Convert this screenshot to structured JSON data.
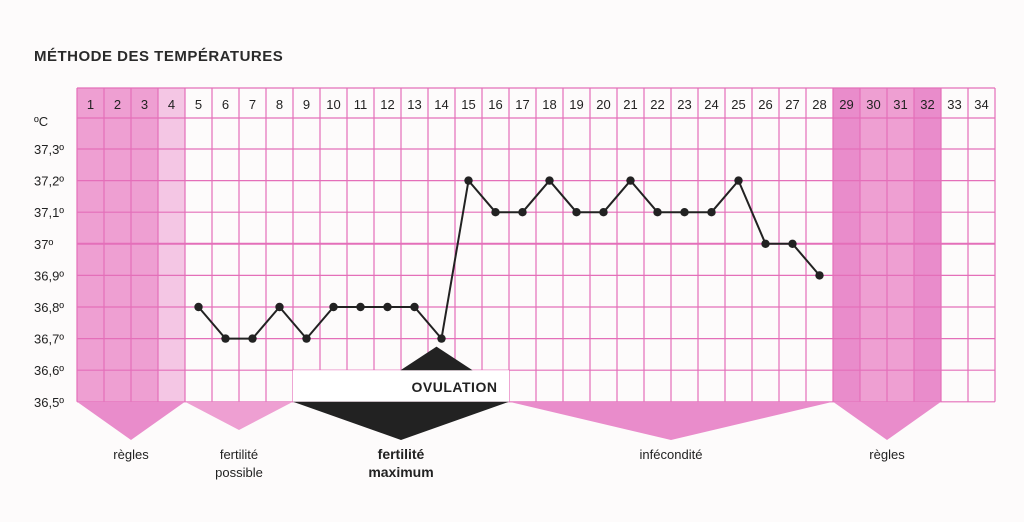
{
  "title": "MÉTHODE DES TEMPÉRATURES",
  "colors": {
    "pink_light": "#f4c6e4",
    "pink_mid": "#ee9fd2",
    "pink_strong": "#e98ccb",
    "grid_line": "#e46fb9",
    "black": "#222222"
  },
  "chart_data": {
    "type": "line",
    "title": "MÉTHODE DES TEMPÉRATURES",
    "xlabel": "",
    "ylabel": "°C",
    "x": [
      5,
      6,
      7,
      8,
      9,
      10,
      11,
      12,
      13,
      14,
      15,
      16,
      17,
      18,
      19,
      20,
      21,
      22,
      23,
      24,
      25,
      26,
      27,
      28
    ],
    "y": [
      36.8,
      36.7,
      36.7,
      36.8,
      36.7,
      36.8,
      36.8,
      36.8,
      36.8,
      36.7,
      37.2,
      37.1,
      37.1,
      37.2,
      37.1,
      37.1,
      37.2,
      37.1,
      37.1,
      37.1,
      37.2,
      37.0,
      37.0,
      36.9
    ],
    "xlim": [
      1,
      34
    ],
    "ylim": [
      36.5,
      37.3
    ],
    "grid": true,
    "day_labels": [
      "1",
      "2",
      "3",
      "4",
      "5",
      "6",
      "7",
      "8",
      "9",
      "10",
      "11",
      "12",
      "13",
      "14",
      "15",
      "16",
      "17",
      "18",
      "19",
      "20",
      "21",
      "22",
      "23",
      "24",
      "25",
      "26",
      "27",
      "28",
      "29",
      "30",
      "31",
      "32",
      "33",
      "34"
    ],
    "y_tick_labels": [
      "37,3º",
      "37,2º",
      "37,1º",
      "37º",
      "36,9º",
      "36,8º",
      "36,7º",
      "36,6º",
      "36,5º"
    ],
    "y_tick_values": [
      37.3,
      37.2,
      37.1,
      37.0,
      36.9,
      36.8,
      36.7,
      36.6,
      36.5
    ],
    "unit_label": "ºC",
    "ovulation_label": "OVULATION",
    "ovulation_day": 14,
    "phases": [
      {
        "label": "règles",
        "from": 1,
        "to": 4
      },
      {
        "label": "fertilité\npossible",
        "from": 5,
        "to": 8
      },
      {
        "label": "fertilité\nmaximum",
        "from": 9,
        "to": 16
      },
      {
        "label": "infécondité",
        "from": 17,
        "to": 28
      },
      {
        "label": "règles",
        "from": 29,
        "to": 32
      }
    ]
  }
}
